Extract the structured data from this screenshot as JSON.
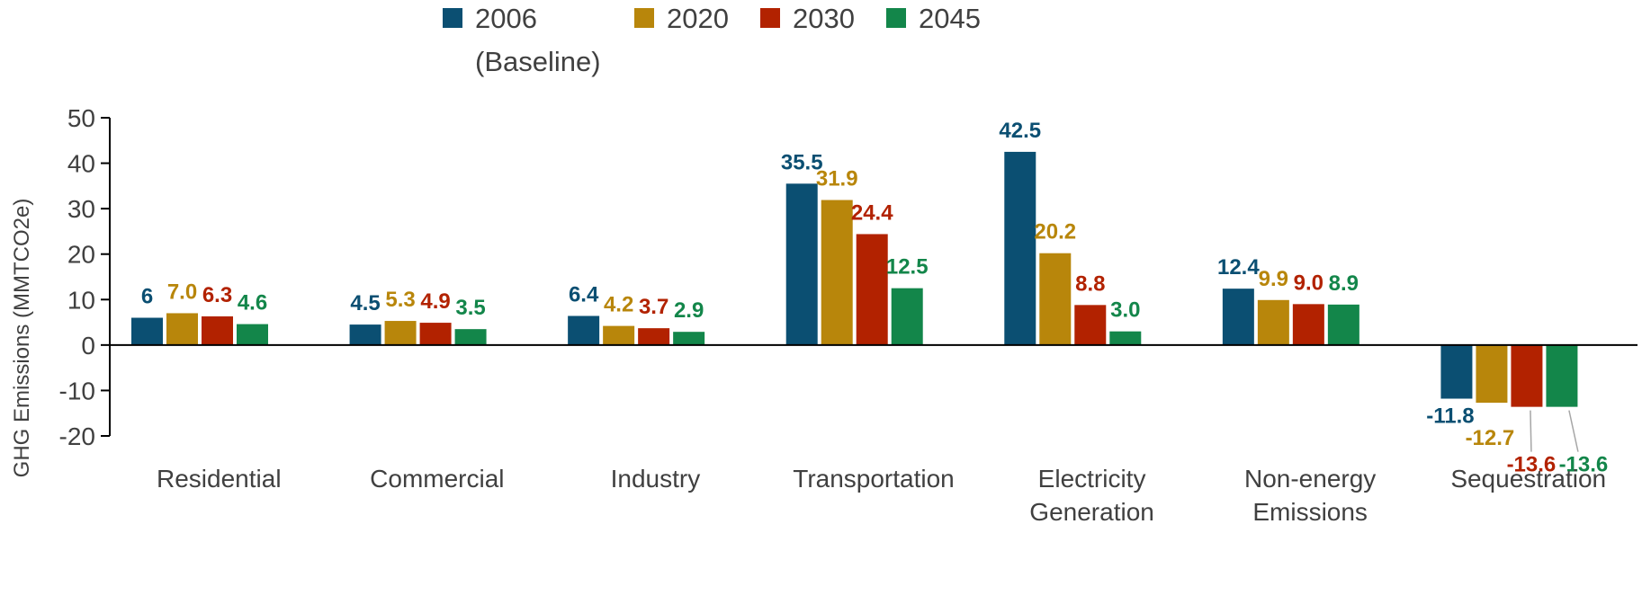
{
  "chart_data": {
    "type": "bar",
    "categories": [
      [
        "Residential"
      ],
      [
        "Commercial"
      ],
      [
        "Industry"
      ],
      [
        "Transportation"
      ],
      [
        "Electricity",
        "Generation"
      ],
      [
        "Non-energy",
        "Emissions"
      ],
      [
        "Sequestration"
      ]
    ],
    "series": [
      {
        "name": [
          "2006",
          "(Baseline)"
        ],
        "color": "#0B4F72",
        "values": [
          6,
          4.5,
          6.4,
          35.5,
          42.5,
          12.4,
          -11.8
        ],
        "labels": [
          "6",
          "4.5",
          "6.4",
          "35.5",
          "42.5",
          "12.4",
          "-11.8"
        ]
      },
      {
        "name": [
          "2020"
        ],
        "color": "#B8860B",
        "values": [
          7.0,
          5.3,
          4.2,
          31.9,
          20.2,
          9.9,
          -12.7
        ],
        "labels": [
          "7.0",
          "5.3",
          "4.2",
          "31.9",
          "20.2",
          "9.9",
          "-12.7"
        ]
      },
      {
        "name": [
          "2030"
        ],
        "color": "#B22200",
        "values": [
          6.3,
          4.9,
          3.7,
          24.4,
          8.8,
          9.0,
          -13.6
        ],
        "labels": [
          "6.3",
          "4.9",
          "3.7",
          "24.4",
          "8.8",
          "9.0",
          "-13.6"
        ]
      },
      {
        "name": [
          "2045"
        ],
        "color": "#13864A",
        "values": [
          4.6,
          3.5,
          2.9,
          12.5,
          3.0,
          8.9,
          -13.6
        ],
        "labels": [
          "4.6",
          "3.5",
          "2.9",
          "12.5",
          "3.0",
          "8.9",
          "-13.6"
        ]
      }
    ],
    "ylabel": "GHG Emissions (MMTCO2e)",
    "ylim": [
      -20,
      50
    ],
    "yticks": [
      50,
      40,
      30,
      20,
      10,
      0,
      -10,
      -20
    ],
    "grid": false,
    "legend_position": "top"
  }
}
